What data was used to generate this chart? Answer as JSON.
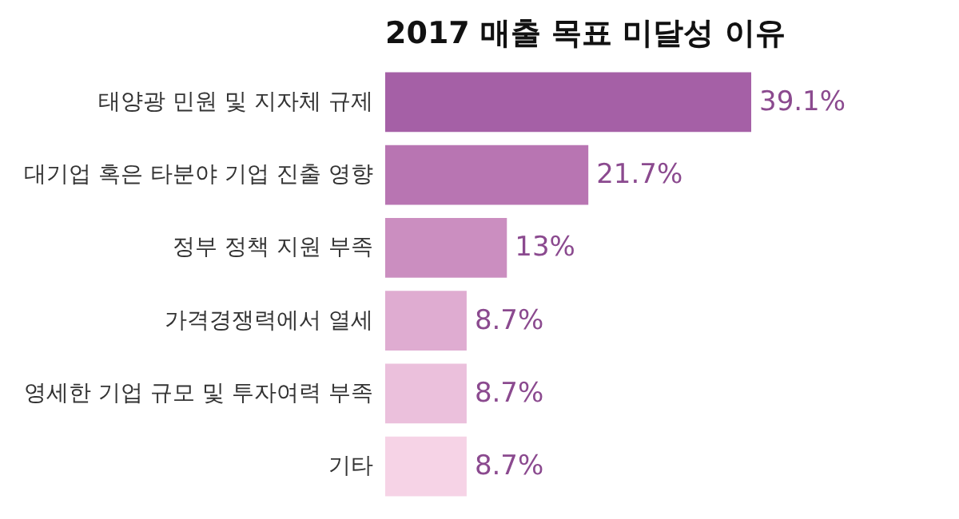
{
  "chart_data": {
    "type": "bar",
    "orientation": "horizontal",
    "title": "2017 매출 목표 미달성 이유",
    "categories": [
      "태양광 민원 및 지자체 규제",
      "대기업 혹은 타분야 기업 진출 영향",
      "정부 정책 지원 부족",
      "가격경쟁력에서 열세",
      "영세한 기업 규모 및 투자여력 부족",
      "기타"
    ],
    "values": [
      39.1,
      21.7,
      13,
      8.7,
      8.7,
      8.7
    ],
    "value_labels": [
      "39.1%",
      "21.7%",
      "13%",
      "8.7%",
      "8.7%",
      "8.7%"
    ],
    "colors": [
      "#a560a6",
      "#b875b2",
      "#cb8ec0",
      "#dfacd1",
      "#ebc0dc",
      "#f6d3e6"
    ]
  }
}
